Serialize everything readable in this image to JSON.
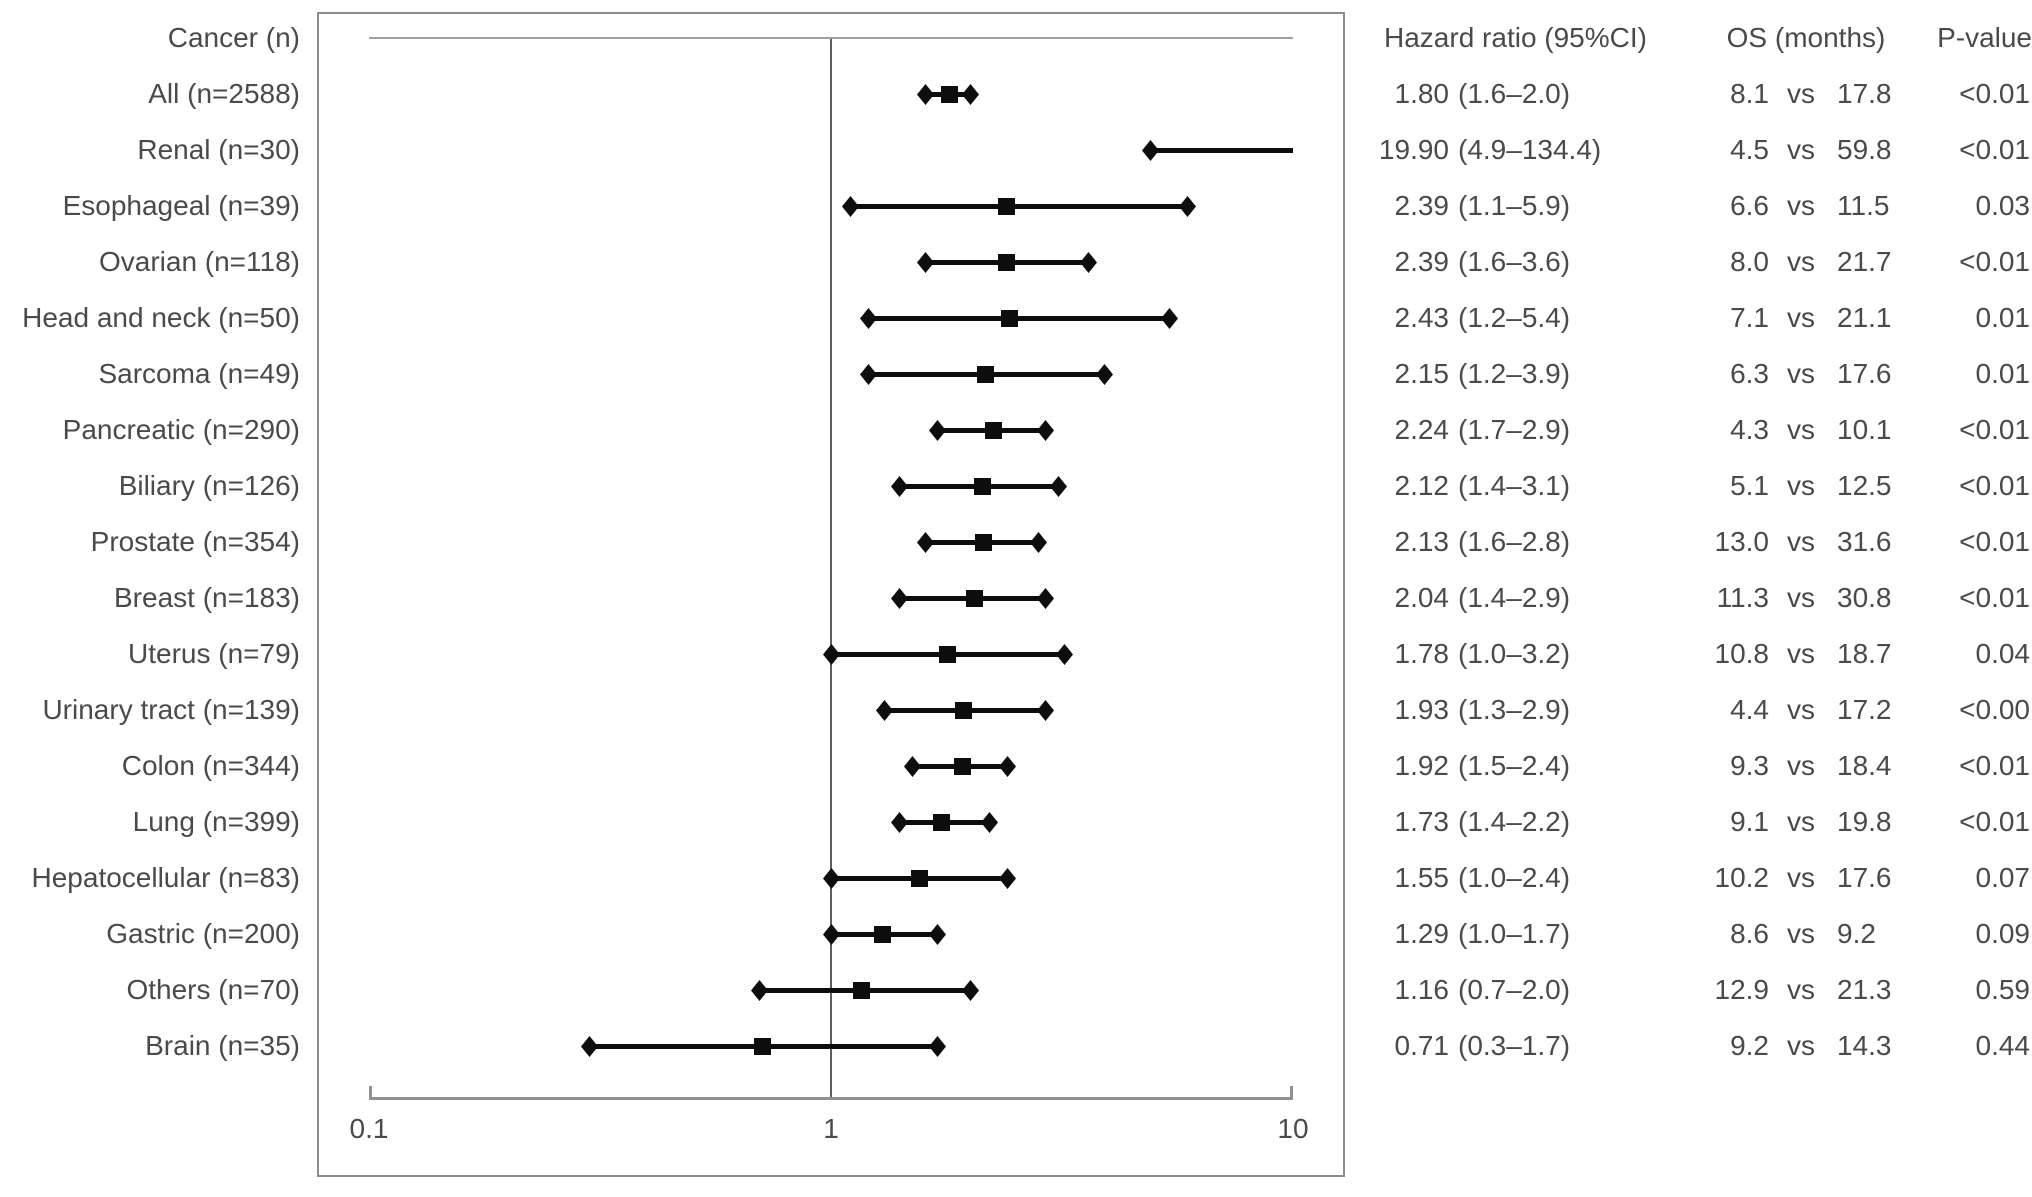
{
  "figure": {
    "row_header": "Cancer (n)",
    "table_headers": {
      "hazard_ratio": "Hazard ratio (95%CI)",
      "os": "OS (months)",
      "p_value": "P-value"
    },
    "os_separator": "vs"
  },
  "chart_data": {
    "type": "forest",
    "x_axis": {
      "scale": "log10",
      "min": 0.1,
      "max": 10,
      "ticks": [
        0.1,
        1,
        10
      ],
      "tick_labels": [
        "0.1",
        "1",
        "10"
      ],
      "reference_line": 1
    },
    "marker": "square",
    "ci_cap": "diamond",
    "rows": [
      {
        "label": "All (n=2588)",
        "hr": 1.8,
        "ci_low": 1.6,
        "ci_high": 2.0,
        "hr_text": "1.80",
        "ci_text": "(1.6–2.0)",
        "os_before": "8.1",
        "os_after": "17.8",
        "p": "<0.01"
      },
      {
        "label": "Renal (n=30)",
        "hr": 19.9,
        "ci_low": 4.9,
        "ci_high": 134.4,
        "hr_text": "19.90",
        "ci_text": "(4.9–134.4)",
        "os_before": "4.5",
        "os_after": "59.8",
        "p": "<0.01"
      },
      {
        "label": "Esophageal (n=39)",
        "hr": 2.39,
        "ci_low": 1.1,
        "ci_high": 5.9,
        "hr_text": "2.39",
        "ci_text": "(1.1–5.9)",
        "os_before": "6.6",
        "os_after": "11.5",
        "p": "0.03"
      },
      {
        "label": "Ovarian (n=118)",
        "hr": 2.39,
        "ci_low": 1.6,
        "ci_high": 3.6,
        "hr_text": "2.39",
        "ci_text": "(1.6–3.6)",
        "os_before": "8.0",
        "os_after": "21.7",
        "p": "<0.01"
      },
      {
        "label": "Head and neck (n=50)",
        "hr": 2.43,
        "ci_low": 1.2,
        "ci_high": 5.4,
        "hr_text": "2.43",
        "ci_text": "(1.2–5.4)",
        "os_before": "7.1",
        "os_after": "21.1",
        "p": "0.01"
      },
      {
        "label": "Sarcoma (n=49)",
        "hr": 2.15,
        "ci_low": 1.2,
        "ci_high": 3.9,
        "hr_text": "2.15",
        "ci_text": "(1.2–3.9)",
        "os_before": "6.3",
        "os_after": "17.6",
        "p": "0.01"
      },
      {
        "label": "Pancreatic (n=290)",
        "hr": 2.24,
        "ci_low": 1.7,
        "ci_high": 2.9,
        "hr_text": "2.24",
        "ci_text": "(1.7–2.9)",
        "os_before": "4.3",
        "os_after": "10.1",
        "p": "<0.01"
      },
      {
        "label": "Biliary (n=126)",
        "hr": 2.12,
        "ci_low": 1.4,
        "ci_high": 3.1,
        "hr_text": "2.12",
        "ci_text": "(1.4–3.1)",
        "os_before": "5.1",
        "os_after": "12.5",
        "p": "<0.01"
      },
      {
        "label": "Prostate (n=354)",
        "hr": 2.13,
        "ci_low": 1.6,
        "ci_high": 2.8,
        "hr_text": "2.13",
        "ci_text": "(1.6–2.8)",
        "os_before": "13.0",
        "os_after": "31.6",
        "p": "<0.01"
      },
      {
        "label": "Breast (n=183)",
        "hr": 2.04,
        "ci_low": 1.4,
        "ci_high": 2.9,
        "hr_text": "2.04",
        "ci_text": "(1.4–2.9)",
        "os_before": "11.3",
        "os_after": "30.8",
        "p": "<0.01"
      },
      {
        "label": "Uterus (n=79)",
        "hr": 1.78,
        "ci_low": 1.0,
        "ci_high": 3.2,
        "hr_text": "1.78",
        "ci_text": "(1.0–3.2)",
        "os_before": "10.8",
        "os_after": "18.7",
        "p": "0.04"
      },
      {
        "label": "Urinary tract (n=139)",
        "hr": 1.93,
        "ci_low": 1.3,
        "ci_high": 2.9,
        "hr_text": "1.93",
        "ci_text": "(1.3–2.9)",
        "os_before": "4.4",
        "os_after": "17.2",
        "p": "<0.00"
      },
      {
        "label": "Colon (n=344)",
        "hr": 1.92,
        "ci_low": 1.5,
        "ci_high": 2.4,
        "hr_text": "1.92",
        "ci_text": "(1.5–2.4)",
        "os_before": "9.3",
        "os_after": "18.4",
        "p": "<0.01"
      },
      {
        "label": "Lung (n=399)",
        "hr": 1.73,
        "ci_low": 1.4,
        "ci_high": 2.2,
        "hr_text": "1.73",
        "ci_text": "(1.4–2.2)",
        "os_before": "9.1",
        "os_after": "19.8",
        "p": "<0.01"
      },
      {
        "label": "Hepatocellular (n=83)",
        "hr": 1.55,
        "ci_low": 1.0,
        "ci_high": 2.4,
        "hr_text": "1.55",
        "ci_text": "(1.0–2.4)",
        "os_before": "10.2",
        "os_after": "17.6",
        "p": "0.07"
      },
      {
        "label": "Gastric (n=200)",
        "hr": 1.29,
        "ci_low": 1.0,
        "ci_high": 1.7,
        "hr_text": "1.29",
        "ci_text": "(1.0–1.7)",
        "os_before": "8.6",
        "os_after": "9.2",
        "p": "0.09"
      },
      {
        "label": "Others (n=70)",
        "hr": 1.16,
        "ci_low": 0.7,
        "ci_high": 2.0,
        "hr_text": "1.16",
        "ci_text": "(0.7–2.0)",
        "os_before": "12.9",
        "os_after": "21.3",
        "p": "0.59"
      },
      {
        "label": "Brain (n=35)",
        "hr": 0.71,
        "ci_low": 0.3,
        "ci_high": 1.7,
        "hr_text": "0.71",
        "ci_text": "(0.3–1.7)",
        "os_before": "9.2",
        "os_after": "14.3",
        "p": "0.44"
      }
    ]
  },
  "colors": {
    "marker": "#0d0d0d",
    "text": "#4a4a4a",
    "frame": "#8c8c8c",
    "reference_line": "#5f5f5f",
    "background": "#ffffff"
  }
}
